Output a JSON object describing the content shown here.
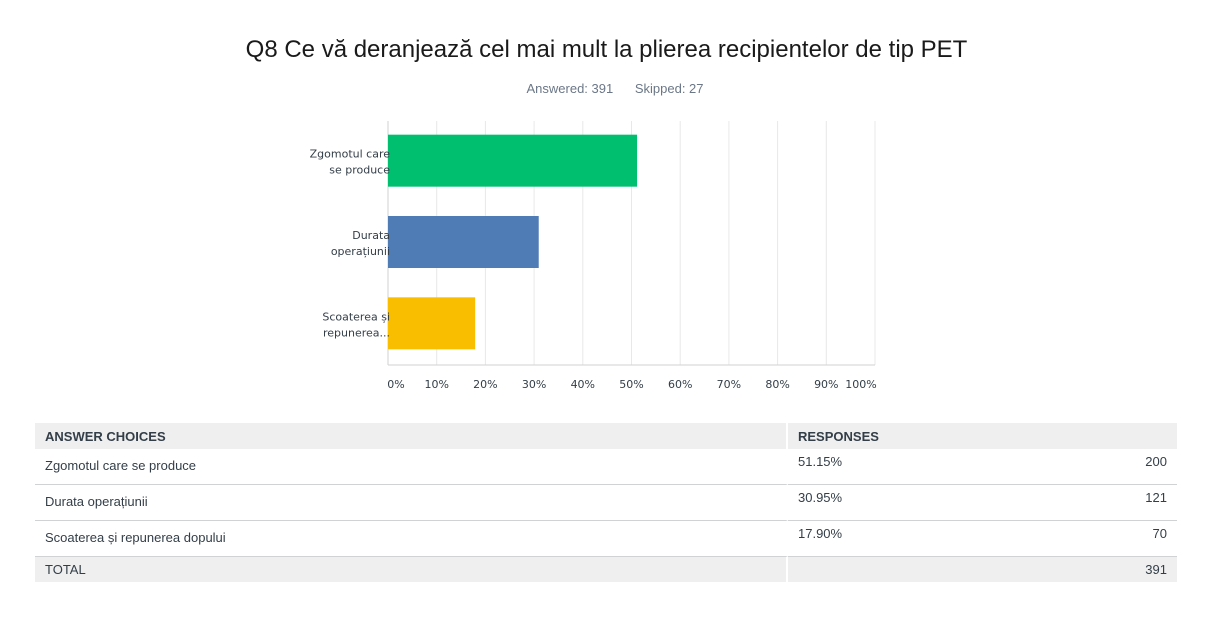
{
  "question": {
    "title": "Q8 Ce vă deranjează cel mai mult la plierea recipientelor de tip PET",
    "answered": "Answered: 391",
    "skipped": "Skipped: 27"
  },
  "colors": [
    "#00bf6f",
    "#507cb6",
    "#f9be00"
  ],
  "chart_data": {
    "type": "bar",
    "orientation": "horizontal",
    "categories": [
      "Zgomotul care se produce",
      "Durata operațiunii",
      "Scoaterea și repunerea..."
    ],
    "category_lines": [
      [
        "Zgomotul care",
        "se produce"
      ],
      [
        "Durata",
        "operațiunii"
      ],
      [
        "Scoaterea și",
        "repunerea..."
      ]
    ],
    "values": [
      51.15,
      30.95,
      17.9
    ],
    "xlim": [
      0,
      100
    ],
    "xticks": [
      "0%",
      "10%",
      "20%",
      "30%",
      "40%",
      "50%",
      "60%",
      "70%",
      "80%",
      "90%",
      "100%"
    ],
    "grid": true
  },
  "table": {
    "headers": [
      "ANSWER CHOICES",
      "RESPONSES"
    ],
    "rows": [
      {
        "choice": "Zgomotul care se produce",
        "percent": "51.15%",
        "count": "200"
      },
      {
        "choice": "Durata operațiunii",
        "percent": "30.95%",
        "count": "121"
      },
      {
        "choice": "Scoaterea și repunerea dopului",
        "percent": "17.90%",
        "count": "70"
      }
    ],
    "total_label": "TOTAL",
    "total_count": "391"
  }
}
